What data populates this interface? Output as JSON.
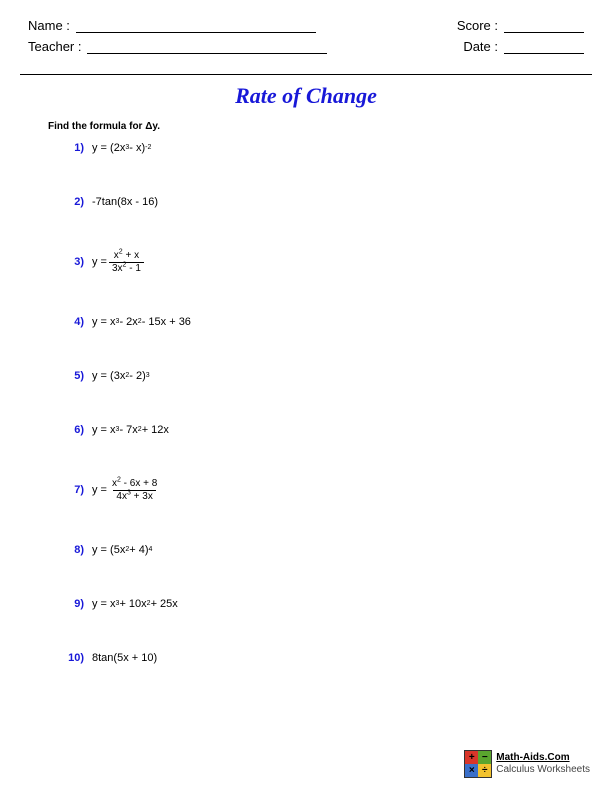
{
  "header": {
    "name_label": "Name :",
    "score_label": "Score :",
    "teacher_label": "Teacher :",
    "date_label": "Date :"
  },
  "title": {
    "text": "Rate of Change",
    "color": "#1818d8"
  },
  "instruction": "Find the formula for Δy.",
  "number_color": "#1818d8",
  "problems": [
    {
      "n": "1)",
      "type": "power_paren",
      "prefix": "y = ",
      "open": "(2x",
      "e1": "3",
      "mid": " - x)",
      "outexp": "-2"
    },
    {
      "n": "2)",
      "type": "plain",
      "text": "-7tan(8x - 16)"
    },
    {
      "n": "3)",
      "type": "frac",
      "prefix": "y = ",
      "num_a": "x",
      "num_e": "2",
      "num_b": " + x",
      "den_a": "3x",
      "den_e": "2",
      "den_b": " - 1"
    },
    {
      "n": "4)",
      "type": "poly3",
      "prefix": "y = x",
      "e1": "3",
      "m1": " - 2x",
      "e2": "2",
      "m2": " - 15x + 36"
    },
    {
      "n": "5)",
      "type": "power_paren",
      "prefix": "y = ",
      "open": "(3x",
      "e1": "2",
      "mid": " - 2)",
      "outexp": "3"
    },
    {
      "n": "6)",
      "type": "poly3",
      "prefix": "y = x",
      "e1": "3",
      "m1": " - 7x",
      "e2": "2",
      "m2": " + 12x"
    },
    {
      "n": "7)",
      "type": "frac",
      "prefix": "y = ",
      "num_a": "x",
      "num_e": "2",
      "num_b": " - 6x + 8",
      "den_a": "4x",
      "den_e": "3",
      "den_b": " + 3x"
    },
    {
      "n": "8)",
      "type": "power_paren",
      "prefix": "y = ",
      "open": "(5x",
      "e1": "2",
      "mid": " + 4)",
      "outexp": "4"
    },
    {
      "n": "9)",
      "type": "poly3",
      "prefix": "y = x",
      "e1": "3",
      "m1": " + 10x",
      "e2": "2",
      "m2": " + 25x"
    },
    {
      "n": "10)",
      "type": "plain",
      "text": "8tan(5x + 10)"
    }
  ],
  "footer": {
    "site": "Math-Aids.Com",
    "subtitle": "Calculus Worksheets"
  }
}
